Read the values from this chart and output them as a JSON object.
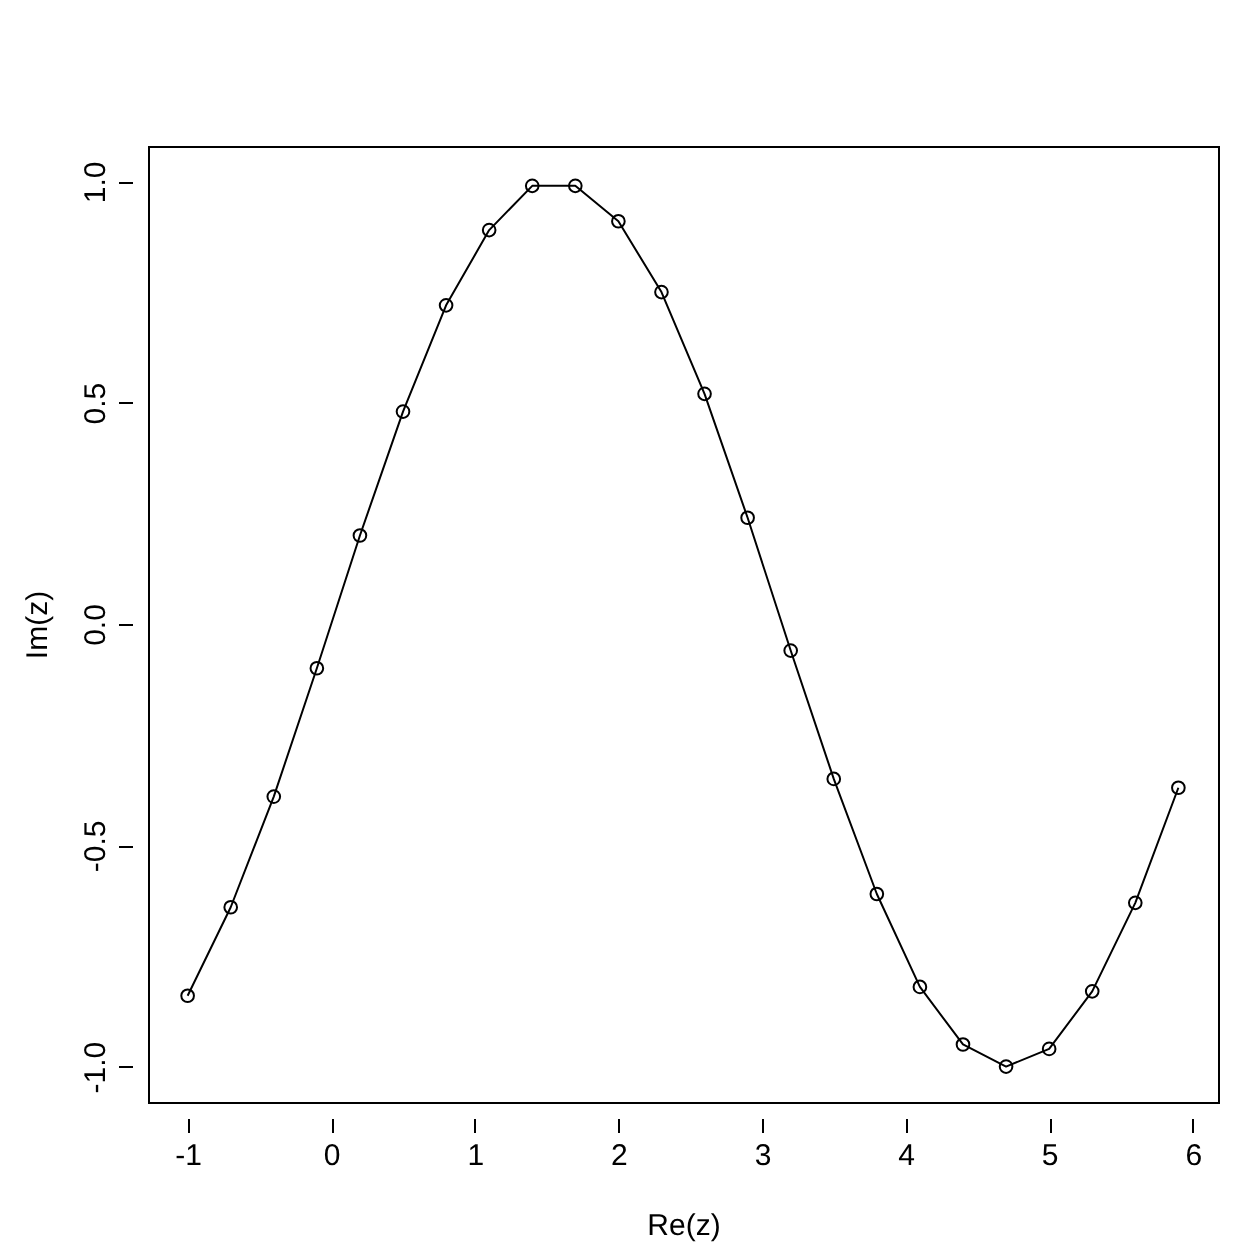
{
  "chart_data": {
    "type": "line",
    "xlabel": "Re(z)",
    "ylabel": "Im(z)",
    "x": [
      -1,
      -0.7,
      -0.4,
      -0.1,
      0.2,
      0.5,
      0.8,
      1.1,
      1.4,
      1.7,
      2.0,
      2.3,
      2.6,
      2.9,
      3.2,
      3.5,
      3.8,
      4.1,
      4.4,
      4.7,
      5.0,
      5.3,
      5.6,
      5.9
    ],
    "series": [
      {
        "color": "#000000",
        "values": [
          -0.84,
          -0.64,
          -0.39,
          -0.1,
          0.2,
          0.48,
          0.72,
          0.89,
          0.99,
          0.99,
          0.91,
          0.75,
          0.52,
          0.24,
          -0.06,
          -0.35,
          -0.61,
          -0.82,
          -0.95,
          -1.0,
          -0.96,
          -0.83,
          -0.63,
          -0.37
        ]
      }
    ],
    "xlim": [
      -1.276,
      6.176
    ],
    "ylim": [
      -1.08,
      1.08
    ],
    "xticks": [
      -1,
      0,
      1,
      2,
      3,
      4,
      5,
      6
    ],
    "yticks": [
      {
        "value": -1,
        "label": "-1.0"
      },
      {
        "value": -0.5,
        "label": "-0.5"
      },
      {
        "value": 0,
        "label": "0.0"
      },
      {
        "value": 0.5,
        "label": "0.5"
      },
      {
        "value": 1,
        "label": "1.0"
      }
    ],
    "marker": "circle",
    "line_style": "solid",
    "grid": false
  }
}
